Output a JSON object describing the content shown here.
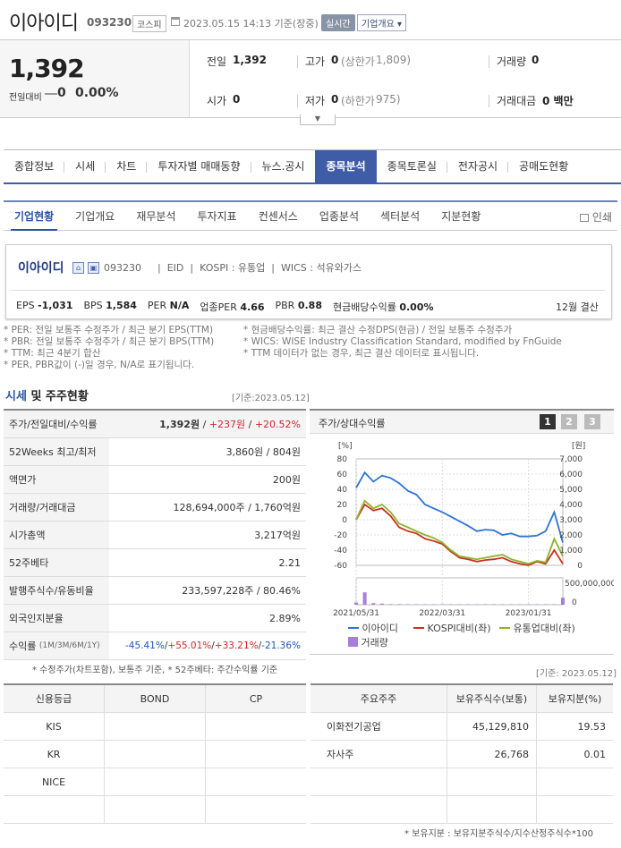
{
  "header": {
    "name": "이아이디",
    "code": "093230",
    "market": "코스피",
    "datetime": "2023.05.15 14:13 기준(장중)",
    "realtime_label": "실시간",
    "company_btn": "기업개요 ▾"
  },
  "price": {
    "current": "1,392",
    "change_label": "전일대비",
    "change": "0",
    "change_pct": "0.00%",
    "prev_label": "전일",
    "prev": "1,392",
    "high_label": "고가",
    "high": "0",
    "upper_label": "(상한가",
    "upper": "1,809)",
    "volume_label": "거래량",
    "volume": "0",
    "open_label": "시가",
    "open": "0",
    "low_label": "저가",
    "low": "0",
    "lower_label": "(하한가",
    "lower": "975)",
    "amount_label": "거래대금",
    "amount": "0 백만"
  },
  "main_tabs": [
    "종합정보",
    "시세",
    "차트",
    "투자자별 매매동향",
    "뉴스.공시",
    "종목분석",
    "종목토론실",
    "전자공시",
    "공매도현황"
  ],
  "sub_tabs": [
    "기업현황",
    "기업개요",
    "재무분석",
    "투자지표",
    "컨센서스",
    "업종분석",
    "섹터분석",
    "지분현황"
  ],
  "print_label": "인쇄",
  "info": {
    "name": "이아이디",
    "code": "093230",
    "eng": "EID",
    "kospi": "KOSPI : 유통업",
    "wics": "WICS : 석유와가스",
    "eps_label": "EPS",
    "eps": "-1,031",
    "bps_label": "BPS",
    "bps": "1,584",
    "per_label": "PER",
    "per": "N/A",
    "iper_label": "업종PER",
    "iper": "4.66",
    "pbr_label": "PBR",
    "pbr": "0.88",
    "div_label": "현금배당수익률",
    "div": "0.00%",
    "settle": "12월 결산"
  },
  "notes": {
    "n1": "* PER: 전일 보통주 수정주가 / 최근 분기 EPS(TTM)",
    "n2": "* PBR: 전일 보통주 수정주가 / 최근 분기 BPS(TTM)",
    "n3": "* TTM: 최근 4분기 합산",
    "n4": "* PER, PBR값이 (-)일 경우, N/A로 표기됩니다.",
    "n5": "* 현금배당수익률: 최근 결산 수정DPS(현금) / 전일 보통주 수정주가",
    "n6": "* WICS: WISE Industry Classification Standard, modified by FnGuide",
    "n7": "* TTM 데이터가 없는 경우, 최근 결산 데이터로 표시됩니다."
  },
  "section": {
    "title_hl": "시세",
    "title_rest": " 및 주주현황",
    "date": "[기준:2023.05.12]"
  },
  "price_table": [
    {
      "k": "주가/전일대비/수익률",
      "v1": "1,392원",
      "v2": "+237원",
      "v3": "+20.52%"
    },
    {
      "k": "52Weeks 최고/최저",
      "v": "3,860원 / 804원"
    },
    {
      "k": "액면가",
      "v": "200원"
    },
    {
      "k": "거래량/거래대금",
      "v": "128,694,000주 / 1,760억원"
    },
    {
      "k": "시가총액",
      "v": "3,217억원"
    },
    {
      "k": "52주베타",
      "v": "2.21"
    },
    {
      "k": "발행주식수/유동비율",
      "v": "233,597,228주 / 80.46%"
    },
    {
      "k": "외국인지분율",
      "v": "2.89%"
    },
    {
      "k": "수익률",
      "ksub": "(1M/3M/6M/1Y)",
      "r1": "-45.41%",
      "r2": "+55.01%",
      "r3": "+33.21%",
      "r4": "-21.36%"
    }
  ],
  "chart_meta": {
    "title": "주가/상대수익률",
    "buttons": [
      "1",
      "2",
      "3"
    ],
    "left_unit": "[%]",
    "right_unit": "[원]",
    "legend": [
      "이아이디",
      "KOSPI대비(좌)",
      "유통업대비(좌)",
      "거래량"
    ],
    "colors": {
      "stock": "#2e74d6",
      "kospi": "#c8321e",
      "industry": "#8cb42d",
      "volume": "#a77fd6"
    }
  },
  "chart_data": {
    "type": "line",
    "x": [
      "2021/05/31",
      "2021/06",
      "2021/07",
      "2021/08",
      "2021/09",
      "2021/10",
      "2021/11",
      "2021/12",
      "2022/01",
      "2022/02",
      "2022/03/31",
      "2022/04",
      "2022/05",
      "2022/06",
      "2022/07",
      "2022/08",
      "2022/09",
      "2022/10",
      "2022/11",
      "2022/12",
      "2023/01/31",
      "2023/02",
      "2023/03",
      "2023/04",
      "2023/05"
    ],
    "x_ticks": [
      "2021/05/31",
      "2022/03/31",
      "2023/01/31"
    ],
    "series": [
      {
        "name": "이아이디",
        "axis": "left",
        "values": [
          42,
          62,
          50,
          58,
          55,
          48,
          38,
          33,
          20,
          15,
          10,
          4,
          -2,
          -8,
          -15,
          -13,
          -14,
          -20,
          -18,
          -22,
          -22,
          -21,
          -15,
          10,
          -30
        ]
      },
      {
        "name": "KOSPI대비(좌)",
        "axis": "left",
        "values": [
          0,
          20,
          12,
          15,
          5,
          -10,
          -15,
          -18,
          -25,
          -28,
          -32,
          -42,
          -50,
          -52,
          -55,
          -53,
          -52,
          -50,
          -55,
          -58,
          -60,
          -55,
          -58,
          -40,
          -58
        ]
      },
      {
        "name": "유통업대비(좌)",
        "axis": "left",
        "values": [
          0,
          25,
          15,
          20,
          10,
          -5,
          -10,
          -15,
          -20,
          -24,
          -30,
          -40,
          -48,
          -50,
          -52,
          -50,
          -48,
          -46,
          -52,
          -55,
          -58,
          -54,
          -56,
          -25,
          -48
        ]
      },
      {
        "name": "거래량",
        "axis": "volume",
        "values": [
          40000000,
          230000000,
          30000000,
          20000000,
          10000000,
          10000000,
          5000000,
          5000000,
          3000000,
          3000000,
          3000000,
          2000000,
          2000000,
          2000000,
          2000000,
          2000000,
          2000000,
          2000000,
          2000000,
          2000000,
          3000000,
          3000000,
          3000000,
          5000000,
          130000000
        ]
      }
    ],
    "ylim_left": [
      -60,
      80
    ],
    "yticks_left": [
      "80",
      "60",
      "40",
      "20",
      "0",
      "-20",
      "-40",
      "-60"
    ],
    "yticks_right": [
      "7,000",
      "6,000",
      "5,000",
      "4,000",
      "3,000",
      "2,000",
      "1,000",
      "0"
    ],
    "volume_ticks": [
      "500,000,000",
      "0"
    ],
    "volume_max": 500000000
  },
  "footnotes": {
    "f1": "* 수정주가(차트포함), 보통주 기준, * 52주베타: 주간수익률 기준",
    "f2": "[기준: 2023.05.12]",
    "f3": "* 보유지분 : 보유지분주식수/지수산정주식수*100"
  },
  "credit": {
    "headers": [
      "신용등급",
      "BOND",
      "CP"
    ],
    "rows": [
      "KIS",
      "KR",
      "NICE",
      ""
    ]
  },
  "holders": {
    "headers": [
      "주요주주",
      "보유주식수(보통)",
      "보유지분(%)"
    ],
    "rows": [
      {
        "name": "이화전기공업",
        "shares": "45,129,810",
        "pct": "19.53"
      },
      {
        "name": "자사주",
        "shares": "26,768",
        "pct": "0.01"
      },
      {
        "name": "",
        "shares": "",
        "pct": ""
      },
      {
        "name": "",
        "shares": "",
        "pct": ""
      }
    ]
  }
}
